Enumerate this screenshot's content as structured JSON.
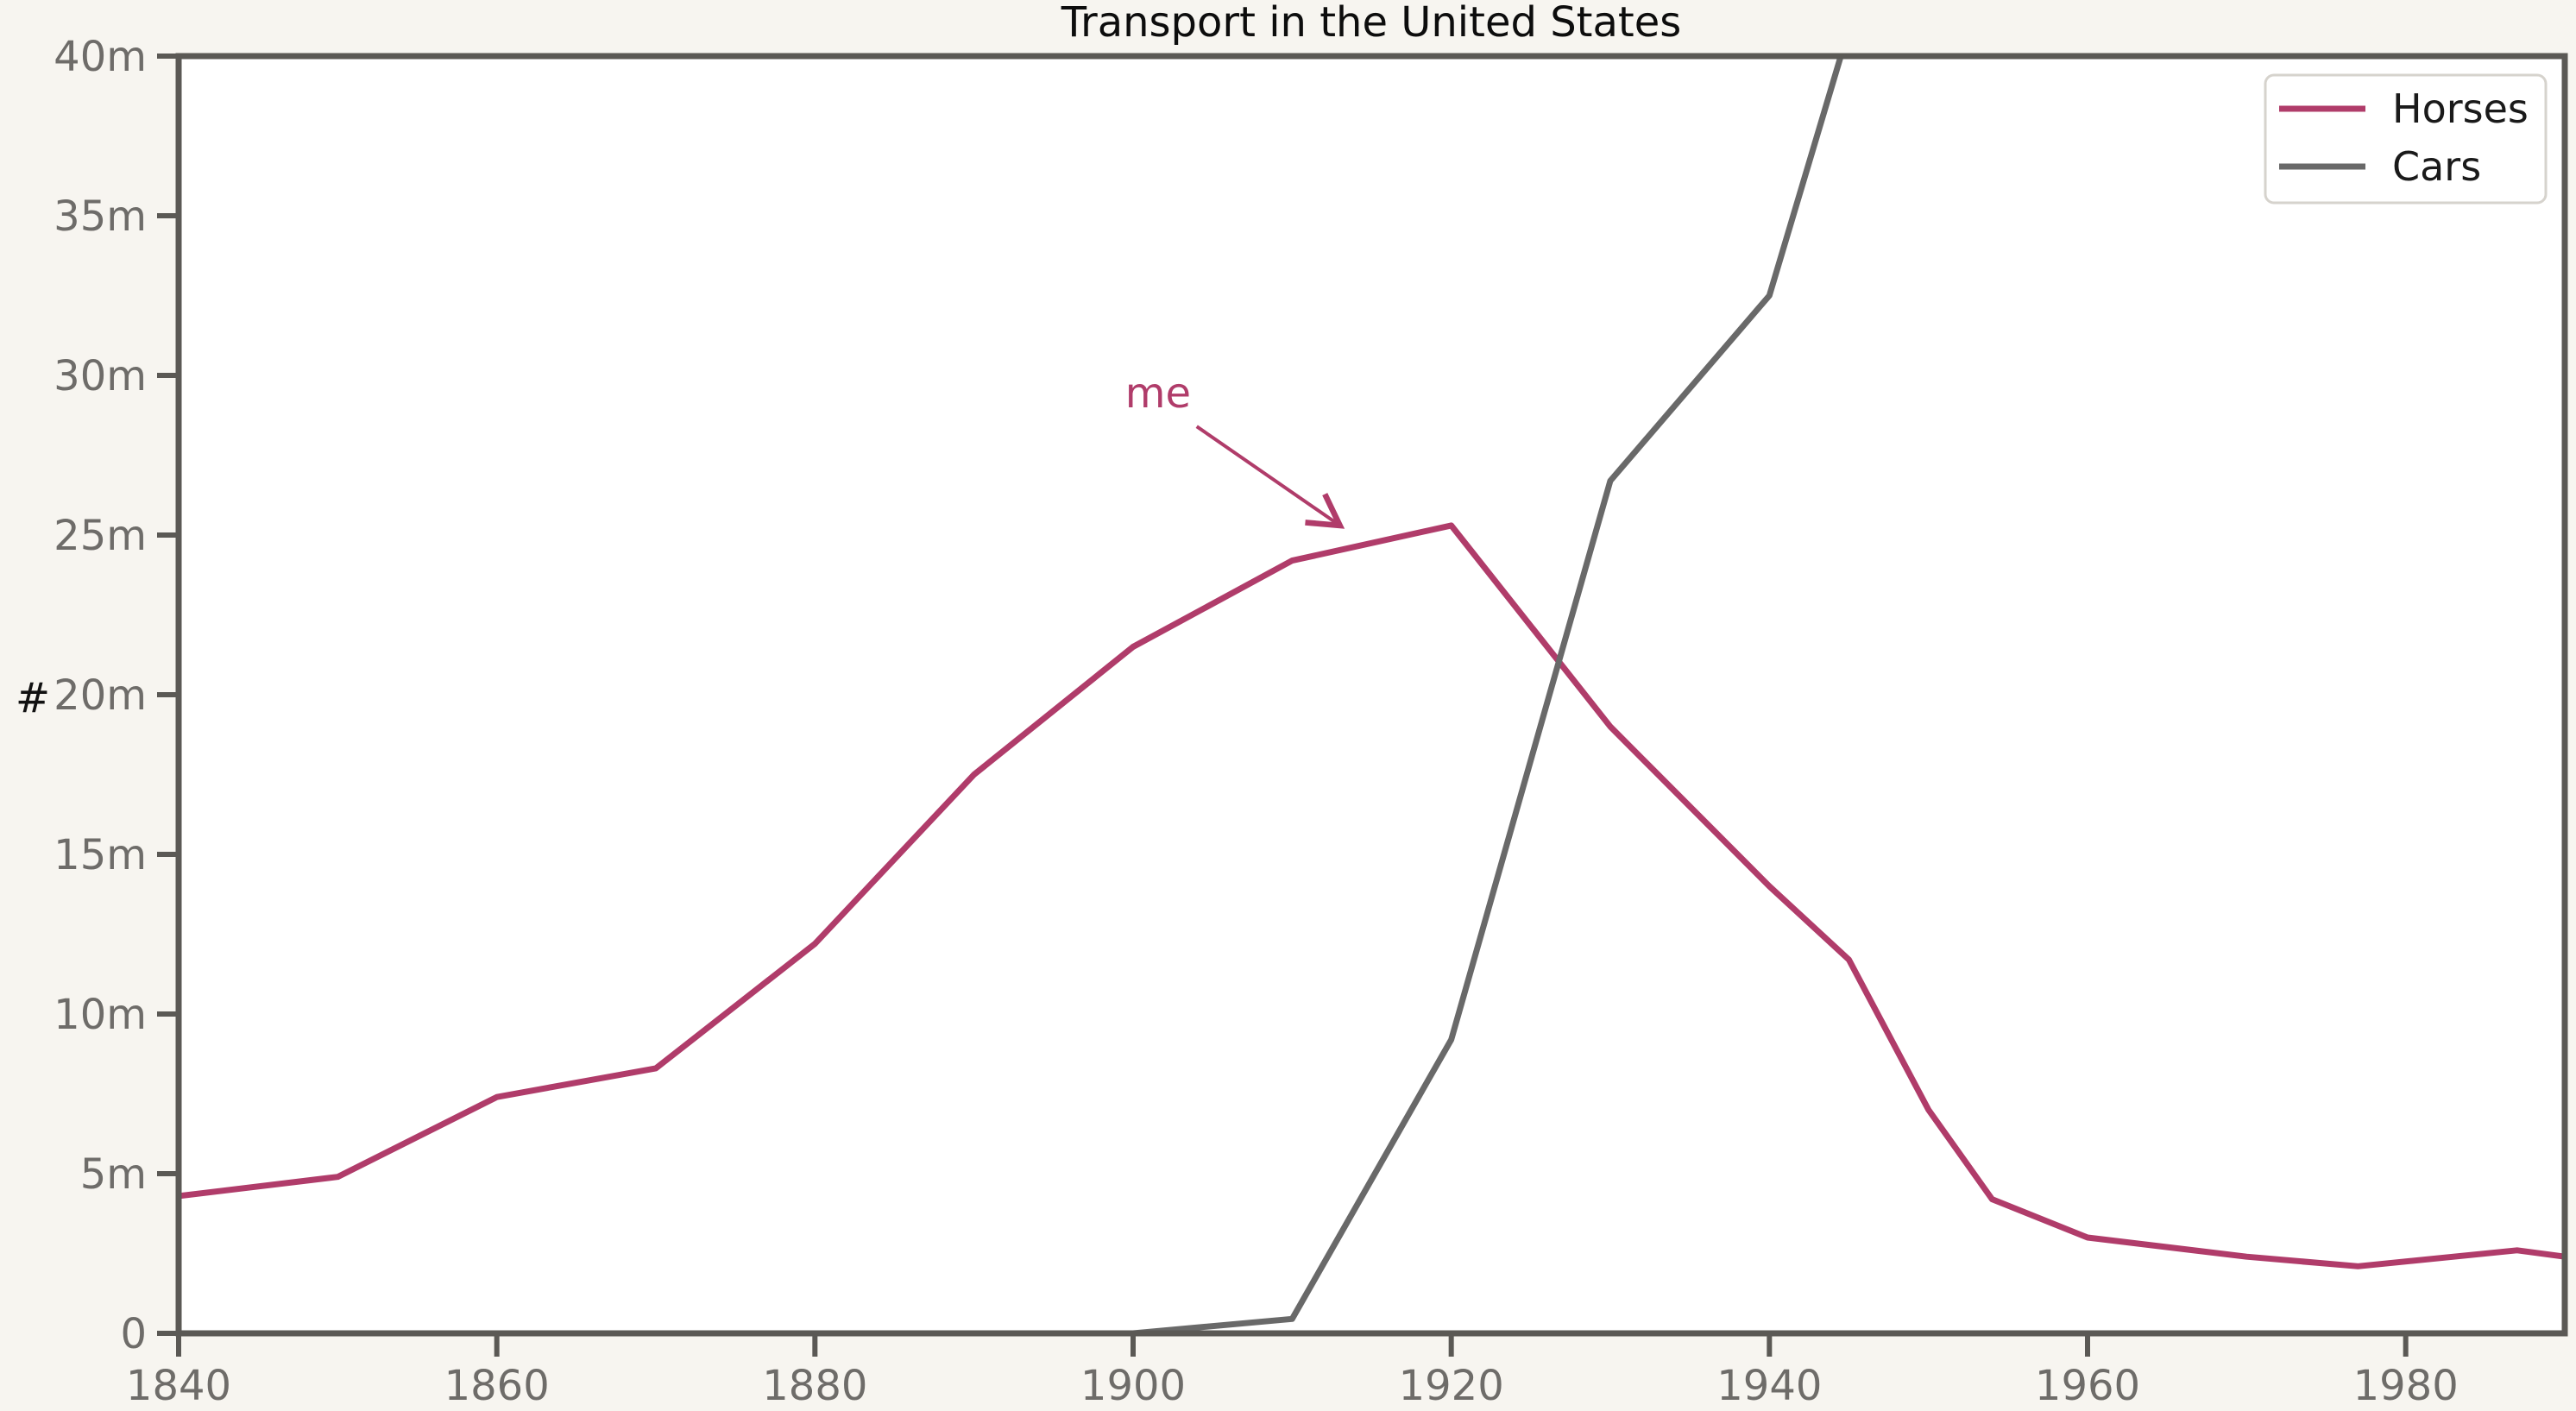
{
  "title": "Transport in the United States",
  "chart_data": {
    "type": "line",
    "title": "Transport in the United States",
    "xlabel": "",
    "ylabel": "#",
    "xlim": [
      1840,
      1990
    ],
    "ylim": [
      0,
      40
    ],
    "grid": false,
    "legend_position": "upper right",
    "xticks": {
      "values": [
        1840,
        1860,
        1880,
        1900,
        1920,
        1940,
        1960,
        1980
      ],
      "labels": [
        "1840",
        "1860",
        "1880",
        "1900",
        "1920",
        "1940",
        "1960",
        "1980"
      ]
    },
    "yticks": {
      "values": [
        0,
        5,
        10,
        15,
        20,
        25,
        30,
        35,
        40
      ],
      "labels": [
        "0",
        "5m",
        "10m",
        "15m",
        "20m",
        "25m",
        "30m",
        "35m",
        "40m"
      ]
    },
    "series": [
      {
        "name": "Horses",
        "color": "#b03c6a",
        "x": [
          1840,
          1850,
          1860,
          1870,
          1880,
          1890,
          1900,
          1910,
          1920,
          1930,
          1940,
          1945,
          1950,
          1954,
          1960,
          1970,
          1977,
          1987,
          1990
        ],
        "y": [
          4.3,
          4.9,
          7.4,
          8.3,
          12.2,
          17.5,
          21.5,
          24.2,
          25.3,
          19.0,
          14.0,
          11.7,
          7.0,
          4.2,
          3.0,
          2.4,
          2.1,
          2.6,
          2.4
        ]
      },
      {
        "name": "Cars",
        "color": "#696969",
        "x": [
          1900,
          1910,
          1920,
          1930,
          1940,
          1950
        ],
        "y": [
          0,
          0.45,
          9.2,
          26.7,
          32.5,
          49.2
        ]
      }
    ],
    "annotation": {
      "text": "me",
      "color": "#b03c6a",
      "text_x": 1899.5,
      "text_y": 29.0,
      "arrow_start_x": 1904,
      "arrow_start_y": 28.4,
      "arrow_tip_x": 1913,
      "arrow_tip_y": 25.3
    }
  },
  "colors": {
    "figure_background": "#f7f5f0",
    "plot_background": "#ffffff",
    "spine": "#5b5955",
    "tick_label": "#6e6c69",
    "title": "#0d0d0d"
  }
}
